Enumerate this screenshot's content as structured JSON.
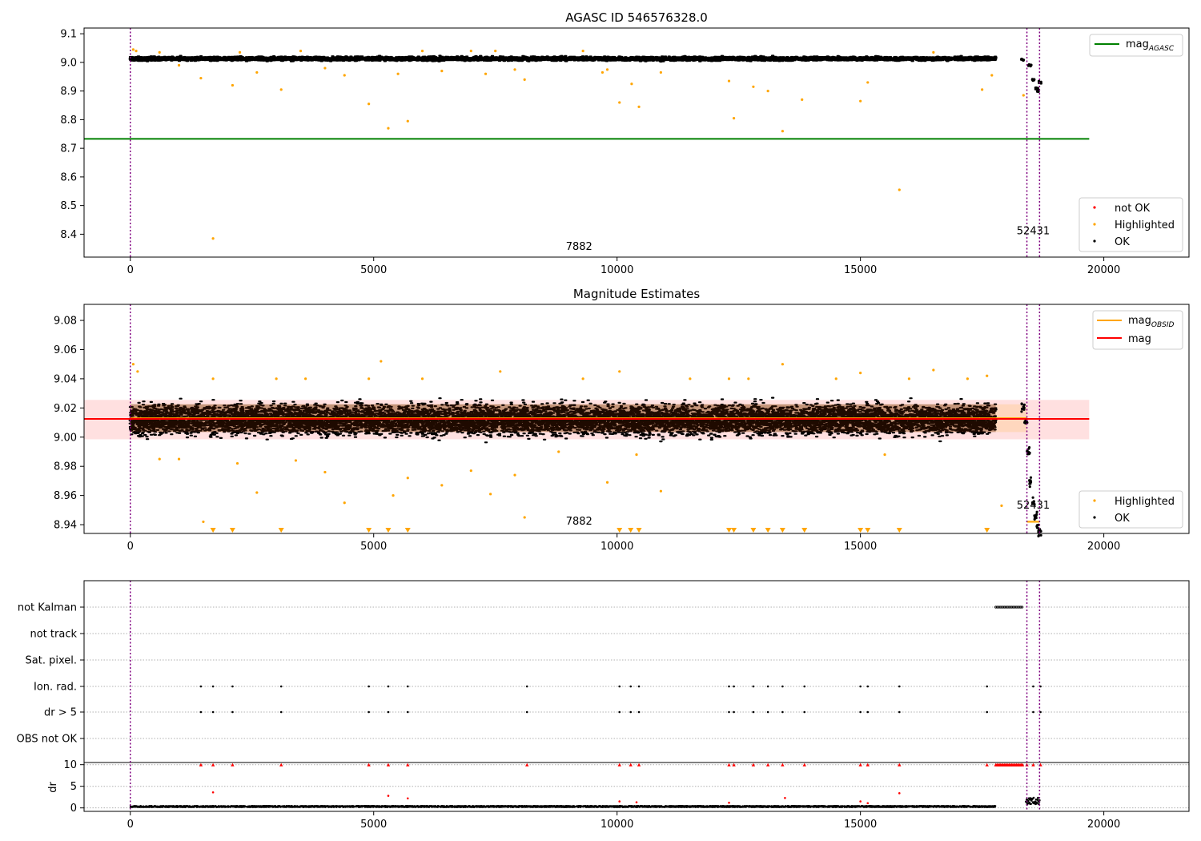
{
  "chart_data": [
    {
      "type": "scatter",
      "title": "AGASC ID 546576328.0",
      "xlim": [
        -950,
        21750
      ],
      "ylim": [
        8.32,
        9.12
      ],
      "xticks": [
        0,
        5000,
        10000,
        15000,
        20000
      ],
      "yticks": [
        8.4,
        8.5,
        8.6,
        8.7,
        8.8,
        8.9,
        9.0,
        9.1
      ],
      "ytick_labels": [
        "8.4",
        "8.5",
        "8.6",
        "8.7",
        "8.8",
        "8.9",
        "9.0",
        "9.1"
      ],
      "obsid_boundaries": [
        0,
        18420,
        18680
      ],
      "obsid_labels": [
        {
          "text": "7882",
          "x": 9220,
          "y": 8.345
        },
        {
          "text": "52431",
          "x": 18550,
          "y": 8.4
        }
      ],
      "mag_agasc_line": {
        "y": 8.733,
        "x": [
          -950,
          19700
        ],
        "color": "#008000"
      },
      "ok_band": {
        "y_center": 9.013,
        "y_spread": 0.012,
        "ranges": [
          [
            0,
            17780
          ]
        ]
      },
      "ok_tail": {
        "x": [
          18330,
          18480,
          18560,
          18620,
          18660,
          18690
        ],
        "y": [
          9.01,
          8.99,
          8.94,
          8.91,
          8.9,
          8.93
        ]
      },
      "highlighted": {
        "x": [
          60,
          120,
          600,
          1000,
          1450,
          1700,
          2100,
          2250,
          2600,
          3100,
          3500,
          4000,
          4400,
          4900,
          5300,
          5500,
          5700,
          6000,
          6400,
          7000,
          7300,
          7500,
          7900,
          8100,
          9300,
          9700,
          9800,
          10050,
          10300,
          10450,
          10900,
          12300,
          12400,
          12800,
          13100,
          13400,
          13800,
          15000,
          15150,
          15800,
          16500,
          17500,
          17700,
          18350
        ],
        "y": [
          9.045,
          9.04,
          9.035,
          8.99,
          8.945,
          8.385,
          8.92,
          9.035,
          8.965,
          8.905,
          9.04,
          8.98,
          8.955,
          8.855,
          8.77,
          8.96,
          8.795,
          9.04,
          8.97,
          9.04,
          8.96,
          9.04,
          8.975,
          8.94,
          9.04,
          8.965,
          8.975,
          8.86,
          8.925,
          8.845,
          8.965,
          8.935,
          8.805,
          8.915,
          8.9,
          8.76,
          8.87,
          8.865,
          8.93,
          8.555,
          9.035,
          8.905,
          8.955,
          8.885
        ],
        "color": "#FFA500"
      },
      "legend": {
        "upper": {
          "position": "top-right",
          "entries": [
            {
              "label": "mag",
              "sub": "AGASC",
              "color": "#008000"
            }
          ]
        },
        "lower": {
          "position": "bottom-right",
          "entries": [
            {
              "label": "not OK",
              "color": "#FF0000"
            },
            {
              "label": "Highlighted",
              "color": "#FFA500"
            },
            {
              "label": "OK",
              "color": "#000000"
            }
          ]
        }
      }
    },
    {
      "type": "scatter",
      "title": "Magnitude Estimates",
      "xlim": [
        -950,
        21750
      ],
      "ylim": [
        8.934,
        9.091
      ],
      "xticks": [
        0,
        5000,
        10000,
        15000,
        20000
      ],
      "yticks": [
        8.94,
        8.96,
        8.98,
        9.0,
        9.02,
        9.04,
        9.06,
        9.08
      ],
      "ytick_labels": [
        "8.94",
        "8.96",
        "8.98",
        "9.00",
        "9.02",
        "9.04",
        "9.06",
        "9.08"
      ],
      "obsid_boundaries": [
        0,
        18420,
        18680
      ],
      "obsid_labels": [
        {
          "text": "7882",
          "x": 9220,
          "y": 8.94
        },
        {
          "text": "52431",
          "x": 18550,
          "y": 8.951
        }
      ],
      "mag_line": {
        "y": 9.0125,
        "x": [
          -950,
          19700
        ],
        "color": "#FF0000",
        "band": [
          8.9985,
          9.0255
        ]
      },
      "mag_obsid_segments": [
        {
          "x": [
            0,
            18420
          ],
          "y": 9.013,
          "band": [
            9.0035,
            9.0225
          ]
        },
        {
          "x": [
            18420,
            18680
          ],
          "y": 8.942,
          "band": [
            8.941,
            8.943
          ]
        }
      ],
      "ok_band": {
        "y_center": 9.012,
        "y_spread": 0.017,
        "ranges": [
          [
            0,
            17780
          ]
        ]
      },
      "ok_tail": {
        "x": [
          18340,
          18400,
          18450,
          18500,
          18550,
          18600,
          18650,
          18680
        ],
        "y": [
          9.02,
          9.01,
          8.99,
          8.97,
          8.955,
          8.945,
          8.937,
          8.935
        ]
      },
      "highlighted": {
        "x": [
          60,
          150,
          600,
          1000,
          1500,
          1700,
          2200,
          2600,
          3000,
          3400,
          3600,
          4000,
          4400,
          4900,
          5150,
          5400,
          5700,
          6000,
          6400,
          7000,
          7400,
          7600,
          7900,
          8100,
          8800,
          9300,
          9800,
          10050,
          10400,
          10900,
          11500,
          12300,
          12700,
          13400,
          14500,
          15000,
          15500,
          16000,
          16500,
          17200,
          17600,
          17900
        ],
        "y": [
          9.05,
          9.045,
          8.985,
          8.985,
          8.942,
          9.04,
          8.982,
          8.962,
          9.04,
          8.984,
          9.04,
          8.976,
          8.955,
          9.04,
          9.052,
          8.96,
          8.972,
          9.04,
          8.967,
          8.977,
          8.961,
          9.045,
          8.974,
          8.945,
          8.99,
          9.04,
          8.969,
          9.045,
          8.988,
          8.963,
          9.04,
          9.04,
          9.04,
          9.05,
          9.04,
          9.044,
          8.988,
          9.04,
          9.046,
          9.04,
          9.042,
          8.953
        ],
        "color": "#FFA500"
      },
      "clipped_highlighted_x": [
        1700,
        2100,
        3100,
        4900,
        5300,
        5700,
        10050,
        10280,
        10450,
        12300,
        12400,
        12800,
        13100,
        13400,
        13850,
        15000,
        15150,
        15800,
        17600
      ],
      "legend": {
        "upper": {
          "position": "top-right",
          "entries": [
            {
              "label": "mag",
              "sub": "OBSID",
              "color": "#FFA500"
            },
            {
              "label": "mag",
              "color": "#FF0000"
            }
          ]
        },
        "lower": {
          "position": "bottom-right",
          "entries": [
            {
              "label": "Highlighted",
              "color": "#FFA500"
            },
            {
              "label": "OK",
              "color": "#000000"
            }
          ]
        }
      }
    },
    {
      "type": "scatter",
      "title": "",
      "xlim": [
        -950,
        21750
      ],
      "xticks": [
        0,
        5000,
        10000,
        15000,
        20000
      ],
      "flag_rows": [
        "not Kalman",
        "not track",
        "Sat. pixel.",
        "Ion. rad.",
        "dr > 5",
        "OBS not OK"
      ],
      "flags": {
        "not Kalman": {
          "x_range": [
            17780,
            18330
          ]
        },
        "Ion. rad.": {
          "x": [
            1450,
            1700,
            2100,
            3100,
            4900,
            5300,
            5700,
            8150,
            10050,
            10280,
            10450,
            12300,
            12400,
            12800,
            13100,
            13400,
            13850,
            15000,
            15150,
            15800,
            17600,
            18550,
            18700
          ]
        },
        "dr > 5": {
          "x": [
            1450,
            1700,
            2100,
            3100,
            4900,
            5300,
            5700,
            8150,
            10050,
            10280,
            10450,
            12300,
            12400,
            12800,
            13100,
            13400,
            13850,
            15000,
            15150,
            15800,
            17600,
            18550,
            18700
          ]
        }
      },
      "dr_panel": {
        "ylabel": "dr",
        "ylim": [
          -0.8,
          10.5
        ],
        "yticks": [
          0,
          5,
          10
        ],
        "ytick_labels": [
          "0",
          "5",
          "10"
        ],
        "capped_points_x": [
          1450,
          1700,
          2100,
          3100,
          4900,
          5300,
          5700,
          8150,
          10050,
          10280,
          10450,
          12300,
          12400,
          12800,
          13100,
          13400,
          13850,
          15000,
          15150,
          15800,
          17600,
          18420,
          18550,
          18700
        ],
        "capped_range": [
          17780,
          18330
        ],
        "other_points": {
          "x": [
            1700,
            5300,
            5700,
            10050,
            10400,
            12300,
            13450,
            15000,
            15150,
            15800
          ],
          "y": [
            3.6,
            2.8,
            2.2,
            1.5,
            1.3,
            1.2,
            2.3,
            1.5,
            1.1,
            3.4
          ]
        },
        "tail_range": [
          18400,
          18680
        ]
      }
    }
  ]
}
